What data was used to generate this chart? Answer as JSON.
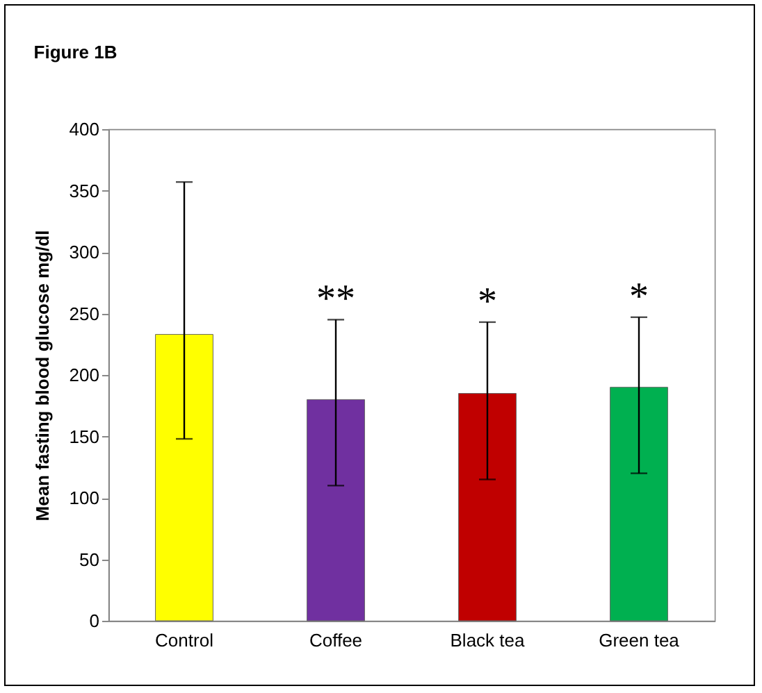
{
  "chart_data": {
    "type": "bar",
    "title": "Figure 1B",
    "ylabel": "Mean  fasting blood glucose mg/dl",
    "categories": [
      "Control",
      "Coffee",
      "Black tea",
      "Green tea"
    ],
    "values": [
      233,
      180,
      185,
      190
    ],
    "colors": [
      "#ffff00",
      "#7030a0",
      "#c00000",
      "#00b050"
    ],
    "errors": [
      [
        148,
        357
      ],
      [
        110,
        245
      ],
      [
        115,
        243
      ],
      [
        120,
        247
      ]
    ],
    "annotations": [
      "**",
      "*",
      "*"
    ],
    "ylim": [
      0,
      400
    ],
    "yticks": [
      0,
      50,
      100,
      150,
      200,
      250,
      300,
      350,
      400
    ],
    "grid": false
  }
}
